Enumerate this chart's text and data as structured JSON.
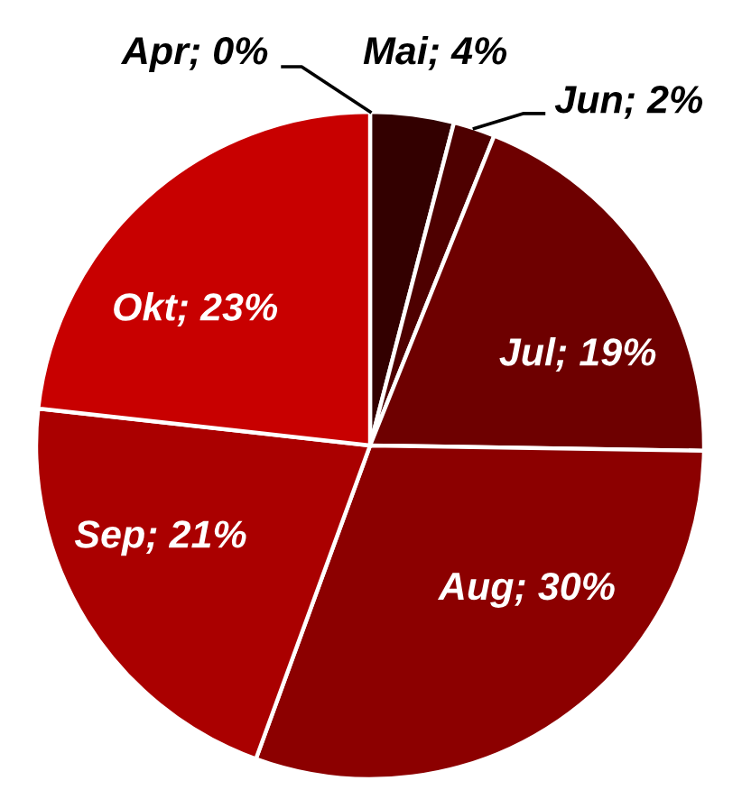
{
  "chart_data": {
    "type": "pie",
    "categories": [
      "Apr",
      "Mai",
      "Jun",
      "Jul",
      "Aug",
      "Sep",
      "Okt"
    ],
    "values": [
      0,
      4,
      2,
      19,
      30,
      21,
      23
    ],
    "colors": [
      "#1f0000",
      "#330000",
      "#4e0000",
      "#6e0000",
      "#8c0000",
      "#aa0000",
      "#c80000"
    ],
    "value_labels": [
      "; 0%",
      "; 4%",
      "; 2%",
      "; 19%",
      "; 30%",
      "; 21%",
      "; 23%"
    ]
  }
}
